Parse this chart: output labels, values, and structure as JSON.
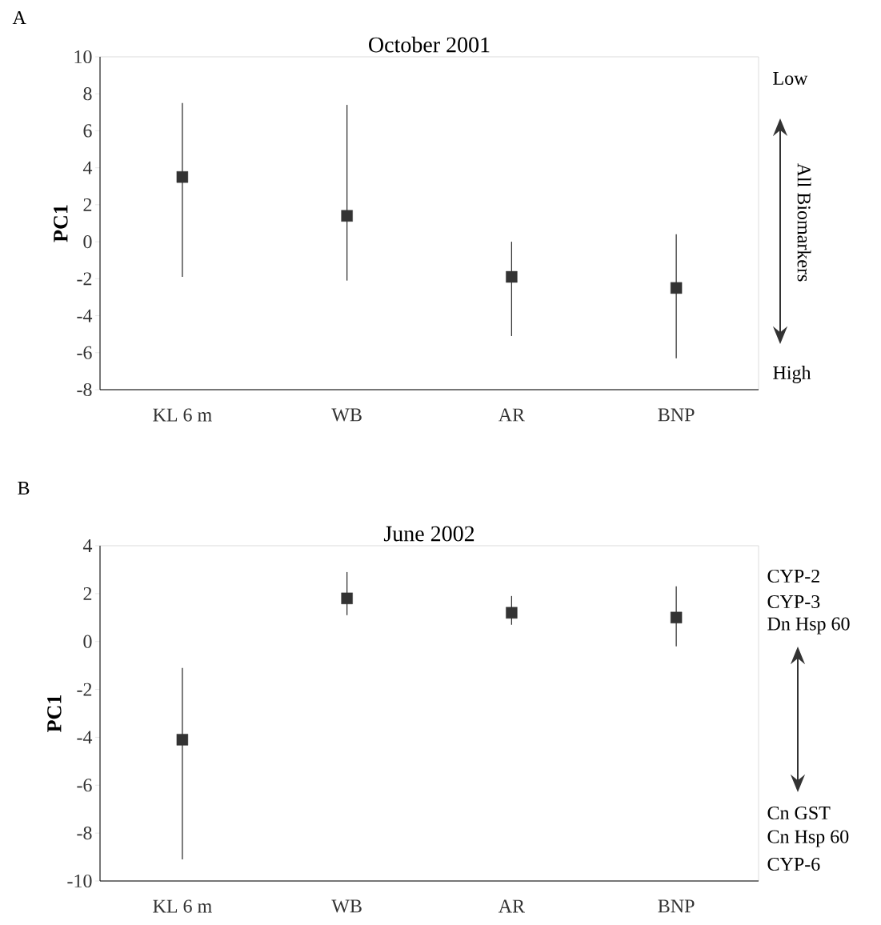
{
  "chart_data": [
    {
      "type": "scatter",
      "title": "October 2001",
      "ylabel": "PC1",
      "categories": [
        "KL 6 m",
        "WB",
        "AR",
        "BNP"
      ],
      "values": [
        3.5,
        1.4,
        -1.9,
        -2.5
      ],
      "errors": [
        [
          -1.9,
          7.5
        ],
        [
          -2.1,
          7.4
        ],
        [
          -5.1,
          0.0
        ],
        [
          -6.3,
          0.4
        ]
      ],
      "color": "#333333",
      "marker": "square",
      "ylim": [
        -8,
        10
      ],
      "yticks": [
        -8,
        -6,
        -4,
        -2,
        0,
        2,
        4,
        6,
        8,
        10
      ],
      "grid": false,
      "annotations": [
        "A",
        "Low",
        "All Biomarkers",
        "High"
      ]
    },
    {
      "type": "scatter",
      "title": "June 2002",
      "ylabel": "PC1",
      "categories": [
        "KL 6 m",
        "WB",
        "AR",
        "BNP"
      ],
      "values": [
        -4.1,
        1.8,
        1.2,
        1.0
      ],
      "errors": [
        [
          -9.1,
          -1.1
        ],
        [
          1.1,
          2.9
        ],
        [
          0.7,
          1.9
        ],
        [
          -0.2,
          2.3
        ]
      ],
      "color": "#333333",
      "marker": "square",
      "ylim": [
        -10,
        4
      ],
      "yticks": [
        -10,
        -8,
        -6,
        -4,
        -2,
        0,
        2,
        4
      ],
      "grid": false,
      "annotations": [
        "B",
        "CYP-2",
        "CYP-3",
        "Dn Hsp 60",
        "Cn GST",
        "Cn Hsp 60",
        "CYP-6"
      ]
    }
  ]
}
